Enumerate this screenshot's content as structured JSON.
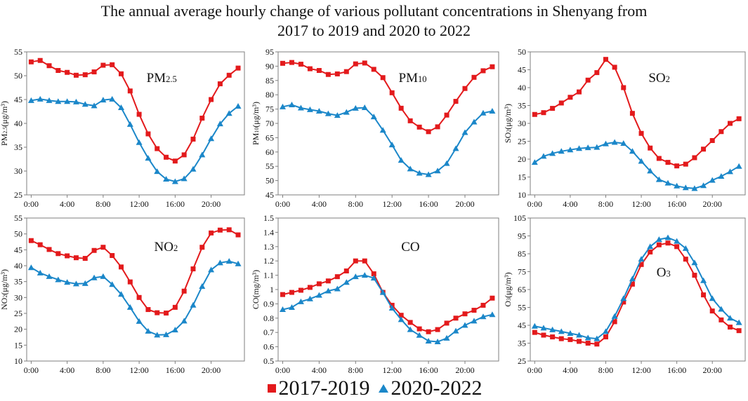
{
  "title_lines": [
    "The annual average hourly change of various pollutant concentrations in Shenyang from",
    "2017 to 2019 and 2020 to 2022"
  ],
  "colors": {
    "series_2017_2019": "#e31a1c",
    "series_2020_2022": "#1b87c9"
  },
  "legend": [
    {
      "label": "2017-2019",
      "marker": "square",
      "color": "#e31a1c"
    },
    {
      "label": "2020-2022",
      "marker": "triangle",
      "color": "#1b87c9"
    }
  ],
  "chart_data": [
    {
      "type": "line",
      "title": "PM2.5",
      "ylabel": "PM2.5(μg/m³)",
      "xlabel": "",
      "ylim": [
        25,
        55
      ],
      "yticks": [
        25,
        30,
        35,
        40,
        45,
        50,
        55
      ],
      "ytick_labels": [
        "25",
        "30",
        "35",
        "40",
        "45",
        "50",
        "55"
      ],
      "x": [
        0,
        1,
        2,
        3,
        4,
        5,
        6,
        7,
        8,
        9,
        10,
        11,
        12,
        13,
        14,
        15,
        16,
        17,
        18,
        19,
        20,
        21,
        22,
        23
      ],
      "xticks": [
        0,
        4,
        8,
        12,
        16,
        20
      ],
      "xtick_labels": [
        "0:00",
        "4:00",
        "8:00",
        "12:00",
        "16:00",
        "20:00"
      ],
      "series": [
        {
          "name": "2017-2019",
          "values": [
            52.9,
            53.2,
            52.1,
            51.1,
            50.7,
            50.1,
            50.2,
            50.8,
            52.2,
            52.3,
            50.4,
            46.8,
            41.9,
            37.8,
            34.7,
            32.9,
            32.1,
            33.4,
            36.7,
            41.1,
            45.0,
            48.3,
            50.1,
            51.6
          ]
        },
        {
          "name": "2020-2022",
          "values": [
            44.8,
            45.1,
            44.8,
            44.6,
            44.6,
            44.5,
            44.0,
            43.7,
            44.9,
            45.1,
            43.3,
            39.8,
            36.0,
            32.7,
            29.9,
            28.3,
            27.8,
            28.4,
            30.4,
            33.4,
            36.8,
            39.9,
            42.1,
            43.6
          ]
        }
      ]
    },
    {
      "type": "line",
      "title": "PM10",
      "ylabel": "PM10(μg/m³)",
      "xlabel": "",
      "ylim": [
        45,
        95
      ],
      "yticks": [
        45,
        50,
        55,
        60,
        65,
        70,
        75,
        80,
        85,
        90,
        95
      ],
      "ytick_labels": [
        "45",
        "50",
        "55",
        "60",
        "65",
        "70",
        "75",
        "80",
        "85",
        "90",
        "95"
      ],
      "x": [
        0,
        1,
        2,
        3,
        4,
        5,
        6,
        7,
        8,
        9,
        10,
        11,
        12,
        13,
        14,
        15,
        16,
        17,
        18,
        19,
        20,
        21,
        22,
        23
      ],
      "xticks": [
        0,
        4,
        8,
        12,
        16,
        20
      ],
      "xtick_labels": [
        "0:00",
        "4:00",
        "8:00",
        "12:00",
        "16:00",
        "20:00"
      ],
      "series": [
        {
          "name": "2017-2019",
          "values": [
            91.0,
            91.3,
            90.7,
            89.1,
            88.5,
            87.1,
            87.3,
            88.1,
            90.8,
            91.1,
            88.9,
            86.0,
            80.7,
            75.3,
            70.9,
            68.7,
            67.1,
            68.8,
            72.9,
            77.7,
            82.2,
            86.1,
            88.4,
            89.8
          ]
        },
        {
          "name": "2020-2022",
          "values": [
            75.8,
            76.5,
            75.4,
            74.8,
            74.3,
            73.4,
            72.8,
            73.9,
            75.3,
            75.5,
            72.3,
            67.6,
            62.5,
            57.1,
            54.1,
            52.6,
            52.1,
            53.4,
            56.0,
            61.2,
            66.8,
            70.5,
            73.6,
            74.3
          ]
        }
      ]
    },
    {
      "type": "line",
      "title": "SO2",
      "ylabel": "SO2(μg/m³)",
      "xlabel": "",
      "ylim": [
        10,
        50
      ],
      "yticks": [
        10,
        15,
        20,
        25,
        30,
        35,
        40,
        45,
        50
      ],
      "ytick_labels": [
        "10",
        "15",
        "20",
        "25",
        "30",
        "35",
        "40",
        "45",
        "50"
      ],
      "x": [
        0,
        1,
        2,
        3,
        4,
        5,
        6,
        7,
        8,
        9,
        10,
        11,
        12,
        13,
        14,
        15,
        16,
        17,
        18,
        19,
        20,
        21,
        22,
        23
      ],
      "xticks": [
        0,
        4,
        8,
        12,
        16,
        20
      ],
      "xtick_labels": [
        "0:00",
        "4:00",
        "8:00",
        "12:00",
        "16:00",
        "20:00"
      ],
      "series": [
        {
          "name": "2017-2019",
          "values": [
            32.5,
            33.0,
            34.2,
            35.7,
            37.3,
            38.8,
            42.1,
            44.2,
            47.9,
            45.7,
            40.0,
            32.8,
            27.2,
            23.1,
            20.2,
            19.1,
            18.1,
            18.6,
            20.4,
            22.8,
            25.2,
            27.7,
            30.0,
            31.3
          ]
        },
        {
          "name": "2020-2022",
          "values": [
            19.1,
            20.8,
            21.6,
            22.2,
            22.6,
            23.0,
            23.2,
            23.3,
            24.3,
            24.7,
            24.4,
            22.2,
            19.4,
            16.7,
            14.3,
            13.3,
            12.5,
            12.0,
            11.8,
            12.6,
            14.1,
            15.2,
            16.5,
            18.0
          ]
        }
      ]
    },
    {
      "type": "line",
      "title": "NO2",
      "ylabel": "NO2(μg/m³)",
      "xlabel": "",
      "ylim": [
        10,
        55
      ],
      "yticks": [
        10,
        15,
        20,
        25,
        30,
        35,
        40,
        45,
        50,
        55
      ],
      "ytick_labels": [
        "10",
        "15",
        "20",
        "25",
        "30",
        "35",
        "40",
        "45",
        "50",
        "55"
      ],
      "x": [
        0,
        1,
        2,
        3,
        4,
        5,
        6,
        7,
        8,
        9,
        10,
        11,
        12,
        13,
        14,
        15,
        16,
        17,
        18,
        19,
        20,
        21,
        22,
        23
      ],
      "xticks": [
        0,
        4,
        8,
        12,
        16,
        20
      ],
      "xtick_labels": [
        "0:00",
        "4:00",
        "8:00",
        "12:00",
        "16:00",
        "20:00"
      ],
      "series": [
        {
          "name": "2017-2019",
          "values": [
            47.9,
            46.6,
            45.1,
            43.8,
            43.1,
            42.5,
            42.3,
            44.8,
            45.8,
            43.2,
            39.6,
            34.9,
            30.0,
            26.2,
            25.2,
            25.1,
            26.9,
            32.0,
            39.0,
            45.8,
            50.3,
            51.2,
            51.3,
            49.7
          ]
        },
        {
          "name": "2020-2022",
          "values": [
            39.4,
            37.7,
            36.6,
            35.6,
            34.8,
            34.3,
            34.4,
            36.2,
            36.6,
            34.1,
            31.0,
            26.9,
            22.5,
            19.4,
            18.2,
            18.3,
            19.8,
            22.6,
            27.6,
            33.5,
            38.7,
            40.9,
            41.4,
            40.6
          ]
        }
      ]
    },
    {
      "type": "line",
      "title": "CO",
      "ylabel": "CO(mg/m³)",
      "xlabel": "",
      "ylim": [
        0.5,
        1.5
      ],
      "yticks": [
        0.5,
        0.6,
        0.7,
        0.8,
        0.9,
        1.0,
        1.1,
        1.2,
        1.3,
        1.4,
        1.5
      ],
      "ytick_labels": [
        "0.5",
        "0.6",
        "0.7",
        "0.8",
        "0.9",
        "1",
        "1.1",
        "1.2",
        "1.3",
        "1.4",
        "1.5"
      ],
      "x": [
        0,
        1,
        2,
        3,
        4,
        5,
        6,
        7,
        8,
        9,
        10,
        11,
        12,
        13,
        14,
        15,
        16,
        17,
        18,
        19,
        20,
        21,
        22,
        23
      ],
      "xticks": [
        0,
        4,
        8,
        12,
        16,
        20
      ],
      "xtick_labels": [
        "0:00",
        "4:00",
        "8:00",
        "12:00",
        "16:00",
        "20:00"
      ],
      "series": [
        {
          "name": "2017-2019",
          "values": [
            0.965,
            0.98,
            0.995,
            1.015,
            1.04,
            1.06,
            1.09,
            1.13,
            1.2,
            1.2,
            1.11,
            0.98,
            0.89,
            0.82,
            0.77,
            0.725,
            0.705,
            0.72,
            0.765,
            0.8,
            0.83,
            0.855,
            0.89,
            0.94
          ]
        },
        {
          "name": "2020-2022",
          "values": [
            0.86,
            0.875,
            0.915,
            0.935,
            0.96,
            0.99,
            1.005,
            1.05,
            1.09,
            1.1,
            1.08,
            0.98,
            0.87,
            0.79,
            0.72,
            0.68,
            0.64,
            0.635,
            0.66,
            0.71,
            0.75,
            0.78,
            0.81,
            0.825
          ]
        }
      ]
    },
    {
      "type": "line",
      "title": "O3",
      "ylabel": "O3(μg/m³)",
      "xlabel": "",
      "ylim": [
        25,
        105
      ],
      "yticks": [
        25,
        35,
        45,
        55,
        65,
        75,
        85,
        95,
        105
      ],
      "ytick_labels": [
        "25",
        "35",
        "45",
        "55",
        "65",
        "75",
        "85",
        "95",
        "105"
      ],
      "x": [
        0,
        1,
        2,
        3,
        4,
        5,
        6,
        7,
        8,
        9,
        10,
        11,
        12,
        13,
        14,
        15,
        16,
        17,
        18,
        19,
        20,
        21,
        22,
        23
      ],
      "xticks": [
        0,
        4,
        8,
        12,
        16,
        20
      ],
      "xtick_labels": [
        "0:00",
        "4:00",
        "8:00",
        "12:00",
        "16:00",
        "20:00"
      ],
      "series": [
        {
          "name": "2017-2019",
          "values": [
            41,
            39.5,
            38.5,
            37.5,
            37,
            36,
            35,
            34.5,
            38.5,
            47,
            58,
            68,
            79,
            86,
            90,
            91,
            89,
            82,
            73,
            62,
            53,
            48,
            44,
            42
          ]
        },
        {
          "name": "2020-2022",
          "values": [
            44.5,
            43.5,
            42.5,
            41.5,
            40.5,
            39.5,
            38,
            37.5,
            41.5,
            50,
            60,
            71,
            82,
            89,
            93,
            94,
            92,
            88,
            80,
            70,
            60,
            54,
            49,
            46.5
          ]
        }
      ]
    }
  ]
}
